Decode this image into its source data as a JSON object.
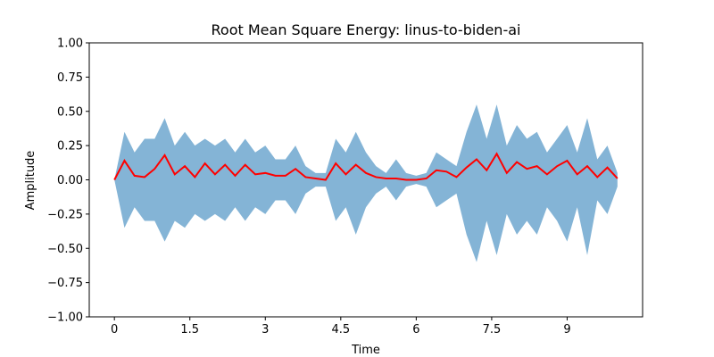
{
  "chart_data": {
    "type": "line",
    "title": "Root Mean Square Energy: linus-to-biden-ai",
    "x_label": "Time",
    "y_label": "Amplitude",
    "x": [
      0,
      0.2,
      0.4,
      0.6,
      0.8,
      1.0,
      1.2,
      1.4,
      1.6,
      1.8,
      2.0,
      2.2,
      2.4,
      2.6,
      2.8,
      3.0,
      3.2,
      3.4,
      3.6,
      3.8,
      4.0,
      4.2,
      4.4,
      4.6,
      4.8,
      5.0,
      5.2,
      5.4,
      5.6,
      5.8,
      6.0,
      6.2,
      6.4,
      6.6,
      6.8,
      7.0,
      7.2,
      7.4,
      7.6,
      7.8,
      8.0,
      8.2,
      8.4,
      8.6,
      8.8,
      9.0,
      9.2,
      9.4,
      9.6,
      9.8,
      10.0
    ],
    "waveform": {
      "color": "#1f77b4",
      "upper": [
        0,
        0.35,
        0.2,
        0.3,
        0.3,
        0.45,
        0.25,
        0.35,
        0.25,
        0.3,
        0.25,
        0.3,
        0.2,
        0.3,
        0.2,
        0.25,
        0.15,
        0.15,
        0.25,
        0.1,
        0.05,
        0.05,
        0.3,
        0.2,
        0.35,
        0.2,
        0.1,
        0.05,
        0.15,
        0.05,
        0.03,
        0.05,
        0.2,
        0.15,
        0.1,
        0.35,
        0.55,
        0.3,
        0.55,
        0.25,
        0.4,
        0.3,
        0.35,
        0.2,
        0.3,
        0.4,
        0.2,
        0.45,
        0.15,
        0.25,
        0.05
      ],
      "lower": [
        0,
        -0.35,
        -0.2,
        -0.3,
        -0.3,
        -0.45,
        -0.3,
        -0.35,
        -0.25,
        -0.3,
        -0.25,
        -0.3,
        -0.2,
        -0.3,
        -0.2,
        -0.25,
        -0.15,
        -0.15,
        -0.25,
        -0.1,
        -0.05,
        -0.05,
        -0.3,
        -0.2,
        -0.4,
        -0.2,
        -0.1,
        -0.05,
        -0.15,
        -0.05,
        -0.03,
        -0.05,
        -0.2,
        -0.15,
        -0.1,
        -0.4,
        -0.6,
        -0.3,
        -0.55,
        -0.25,
        -0.4,
        -0.3,
        -0.4,
        -0.2,
        -0.3,
        -0.45,
        -0.2,
        -0.55,
        -0.15,
        -0.25,
        -0.05
      ]
    },
    "rms": {
      "color": "#ff0000",
      "values": [
        0.0,
        0.14,
        0.03,
        0.02,
        0.08,
        0.18,
        0.04,
        0.1,
        0.02,
        0.12,
        0.04,
        0.11,
        0.03,
        0.11,
        0.04,
        0.05,
        0.03,
        0.03,
        0.08,
        0.02,
        0.01,
        0.0,
        0.12,
        0.04,
        0.11,
        0.05,
        0.02,
        0.01,
        0.01,
        0.0,
        0.0,
        0.01,
        0.07,
        0.06,
        0.02,
        0.09,
        0.15,
        0.07,
        0.19,
        0.05,
        0.13,
        0.08,
        0.1,
        0.04,
        0.1,
        0.14,
        0.04,
        0.1,
        0.02,
        0.09,
        0.01
      ]
    },
    "xlim": [
      -0.5,
      10.5
    ],
    "ylim": [
      -1,
      1
    ],
    "xticks": [
      0,
      1.5,
      3,
      4.5,
      6,
      7.5,
      9
    ],
    "yticks": [
      {
        "value": -1,
        "label": "−1.00"
      },
      {
        "value": -0.75,
        "label": "−0.75"
      },
      {
        "value": -0.5,
        "label": "−0.50"
      },
      {
        "value": -0.25,
        "label": "−0.25"
      },
      {
        "value": 0,
        "label": "0.00"
      },
      {
        "value": 0.25,
        "label": "0.25"
      },
      {
        "value": 0.5,
        "label": "0.50"
      },
      {
        "value": 0.75,
        "label": "0.75"
      },
      {
        "value": 1,
        "label": "1.00"
      }
    ]
  }
}
